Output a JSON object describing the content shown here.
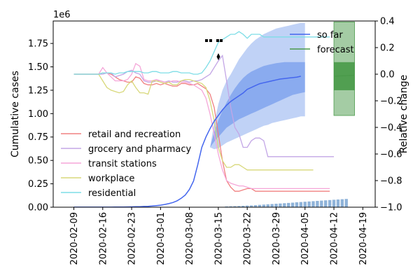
{
  "chart_data": {
    "type": "line",
    "offset_text": "1e6",
    "left_axis": {
      "label": "Cumulative cases",
      "ylim": [
        0,
        1.99
      ],
      "ticks": [
        0.0,
        0.25,
        0.5,
        0.75,
        1.0,
        1.25,
        1.5,
        1.75
      ],
      "tick_labels": [
        "0.00",
        "0.25",
        "0.50",
        "0.75",
        "1.00",
        "1.25",
        "1.50",
        "1.75"
      ]
    },
    "right_axis": {
      "label": "Relative change",
      "ylim": [
        -1.0,
        0.4
      ],
      "ticks": [
        0.4,
        0.2,
        0.0,
        -0.2,
        -0.4,
        -0.6,
        -0.8,
        -1.0
      ],
      "tick_labels": [
        "0.4",
        "0.2",
        "0.0",
        "−0.2",
        "−0.4",
        "−0.6",
        "−0.8",
        "−1.0"
      ]
    },
    "x_axis": {
      "type": "date",
      "range": [
        "2020-02-04",
        "2020-04-22"
      ],
      "tick_labels": [
        "2020-02-09",
        "2020-02-16",
        "2020-02-23",
        "2020-03-01",
        "2020-03-08",
        "2020-03-15",
        "2020-03-22",
        "2020-03-29",
        "2020-04-05",
        "2020-04-12",
        "2020-04-19"
      ]
    },
    "legend_left": {
      "placement": "center-left",
      "entries": [
        {
          "name": "retail and recreation",
          "color": "#f08080"
        },
        {
          "name": "grocery and pharmacy",
          "color": "#c3a6e6"
        },
        {
          "name": "transit stations",
          "color": "#f5a6d8"
        },
        {
          "name": "workplace",
          "color": "#d8d87a"
        },
        {
          "name": "residential",
          "color": "#7ddde6"
        }
      ]
    },
    "legend_right": {
      "placement": "upper-right",
      "entries": [
        {
          "name": "so far",
          "color": "#4466ee"
        },
        {
          "name": "forecast",
          "color": "#4a9a4a"
        }
      ]
    },
    "cases_so_far": {
      "start": "2020-02-09",
      "values": [
        0.001,
        0.001,
        0.001,
        0.001,
        0.001,
        0.001,
        0.001,
        0.001,
        0.001,
        0.001,
        0.002,
        0.002,
        0.002,
        0.003,
        0.004,
        0.005,
        0.006,
        0.008,
        0.01,
        0.013,
        0.017,
        0.022,
        0.029,
        0.038,
        0.05,
        0.068,
        0.095,
        0.13,
        0.19,
        0.28,
        0.45,
        0.64,
        0.75,
        0.84,
        0.92,
        0.98,
        1.04,
        1.09,
        1.13,
        1.16,
        1.19,
        1.22,
        1.26,
        1.28,
        1.3,
        1.32,
        1.33,
        1.34,
        1.35,
        1.36,
        1.37,
        1.375,
        1.38,
        1.385,
        1.39,
        1.4
      ],
      "band_inner": {
        "start": "2020-03-13",
        "upper": [
          0.64,
          0.8,
          0.93,
          1.03,
          1.12,
          1.2,
          1.27,
          1.33,
          1.38,
          1.42,
          1.45,
          1.47,
          1.49,
          1.51,
          1.52,
          1.53,
          1.54,
          1.545,
          1.55,
          1.55,
          1.55,
          1.55,
          1.55,
          1.55
        ],
        "lower": [
          0.64,
          0.7,
          0.75,
          0.8,
          0.85,
          0.88,
          0.91,
          0.94,
          0.96,
          0.98,
          1.0,
          1.02,
          1.04,
          1.06,
          1.08,
          1.1,
          1.12,
          1.14,
          1.16,
          1.18,
          1.2,
          1.21,
          1.22,
          1.23
        ]
      },
      "band_outer": {
        "start": "2020-03-13",
        "upper": [
          0.64,
          0.9,
          1.1,
          1.25,
          1.35,
          1.42,
          1.5,
          1.58,
          1.64,
          1.7,
          1.75,
          1.79,
          1.82,
          1.85,
          1.87,
          1.89,
          1.91,
          1.92,
          1.93,
          1.94,
          1.95,
          1.96,
          1.97,
          1.97
        ],
        "lower": [
          0.64,
          0.62,
          0.63,
          0.66,
          0.69,
          0.71,
          0.73,
          0.75,
          0.77,
          0.79,
          0.81,
          0.83,
          0.85,
          0.87,
          0.88,
          0.9,
          0.91,
          0.92,
          0.93,
          0.94,
          0.95,
          0.96,
          0.97,
          0.97
        ]
      }
    },
    "forecast": {
      "x": [
        "2020-04-12",
        "2020-04-17"
      ],
      "values": [
        1.4,
        1.41
      ],
      "inner_band": [
        1.25,
        1.55
      ],
      "outer_band": [
        0.98,
        1.98
      ]
    },
    "daily_bars": {
      "start": "2020-03-17",
      "values": [
        0.008,
        0.01,
        0.011,
        0.013,
        0.015,
        0.017,
        0.019,
        0.022,
        0.025,
        0.028,
        0.031,
        0.034,
        0.037,
        0.04,
        0.043,
        0.046,
        0.049,
        0.052,
        0.055,
        0.058,
        0.061,
        0.064,
        0.067,
        0.07,
        0.073,
        0.076,
        0.079,
        0.082,
        0.085,
        0.088
      ]
    },
    "mobility": {
      "start": "2020-02-09",
      "series": [
        {
          "name": "retail and recreation",
          "values": [
            0,
            0,
            0,
            0,
            0,
            0,
            0,
            0.01,
            0.01,
            0,
            -0.02,
            -0.04,
            -0.05,
            -0.06,
            -0.06,
            -0.02,
            -0.03,
            -0.07,
            -0.08,
            -0.08,
            -0.07,
            -0.08,
            -0.07,
            -0.08,
            -0.09,
            -0.09,
            -0.07,
            -0.07,
            -0.08,
            -0.08,
            -0.07,
            -0.09,
            -0.11,
            -0.15,
            -0.25,
            -0.45,
            -0.65,
            -0.8,
            -0.85,
            -0.88,
            -0.88,
            -0.87,
            -0.86,
            -0.86,
            -0.88,
            -0.88,
            -0.88,
            -0.88,
            -0.88,
            -0.88,
            -0.88,
            -0.88,
            -0.88,
            -0.88,
            -0.88,
            -0.88,
            -0.88,
            -0.88,
            -0.88,
            -0.88,
            -0.88,
            -0.88,
            -0.88
          ]
        },
        {
          "name": "grocery and pharmacy",
          "values": [
            0,
            0,
            0,
            0,
            0,
            0,
            0,
            0,
            0.01,
            0.01,
            -0.02,
            -0.01,
            0,
            0.02,
            0.03,
            0.01,
            0,
            -0.05,
            -0.06,
            -0.06,
            -0.05,
            -0.05,
            -0.06,
            -0.05,
            -0.06,
            -0.06,
            -0.05,
            -0.05,
            -0.06,
            -0.05,
            -0.05,
            -0.04,
            -0.02,
            0.0,
            0.05,
            0.1,
            0.14,
            -0.05,
            -0.25,
            -0.4,
            -0.45,
            -0.55,
            -0.55,
            -0.5,
            -0.48,
            -0.48,
            -0.5,
            -0.62,
            -0.62,
            -0.62,
            -0.62,
            -0.62,
            -0.62,
            -0.62,
            -0.62,
            -0.62,
            -0.62,
            -0.62,
            -0.62,
            -0.62,
            -0.62,
            -0.62,
            -0.62,
            -0.62
          ]
        },
        {
          "name": "transit stations",
          "values": [
            0,
            0,
            0,
            0,
            0,
            0,
            0,
            0.05,
            0.01,
            -0.02,
            -0.05,
            -0.05,
            -0.05,
            -0.04,
            0.0,
            0.08,
            0.06,
            -0.04,
            -0.05,
            -0.05,
            -0.04,
            -0.05,
            -0.06,
            -0.06,
            -0.05,
            -0.05,
            -0.06,
            -0.06,
            -0.07,
            -0.08,
            -0.1,
            -0.12,
            -0.18,
            -0.3,
            -0.45,
            -0.6,
            -0.72,
            -0.8,
            -0.82,
            -0.83,
            -0.84,
            -0.84,
            -0.85,
            -0.86,
            -0.86,
            -0.86,
            -0.86,
            -0.86,
            -0.86,
            -0.86,
            -0.86,
            -0.86,
            -0.86,
            -0.86,
            -0.86,
            -0.86,
            -0.86,
            -0.86,
            -0.86,
            -0.86,
            -0.86,
            -0.86,
            -0.86
          ]
        },
        {
          "name": "workplace",
          "values": [
            0,
            0,
            0,
            0,
            0,
            0,
            0,
            -0.05,
            -0.1,
            -0.12,
            -0.13,
            -0.14,
            -0.13,
            -0.08,
            -0.05,
            -0.1,
            -0.14,
            -0.14,
            -0.15,
            -0.05,
            -0.05,
            -0.06,
            -0.07,
            -0.06,
            -0.08,
            -0.08,
            -0.05,
            -0.04,
            -0.04,
            -0.05,
            -0.06,
            -0.07,
            -0.1,
            -0.2,
            -0.35,
            -0.55,
            -0.65,
            -0.7,
            -0.7,
            -0.68,
            -0.68,
            -0.7,
            -0.72,
            -0.72,
            -0.72,
            -0.72,
            -0.72,
            -0.72,
            -0.72,
            -0.72,
            -0.72,
            -0.72,
            -0.72,
            -0.72,
            -0.72,
            -0.72,
            -0.72,
            -0.72,
            -0.72
          ]
        },
        {
          "name": "residential",
          "values": [
            0,
            0,
            0,
            0,
            0,
            0,
            0,
            0.01,
            0.01,
            0.01,
            0,
            0.01,
            0.01,
            0.02,
            0.02,
            0.02,
            0.02,
            0.01,
            0.01,
            0.02,
            0.02,
            0.01,
            0.01,
            0.01,
            0.02,
            0.02,
            0.01,
            0.01,
            0.01,
            0.0,
            0.0,
            0.01,
            0.05,
            0.1,
            0.17,
            0.24,
            0.26,
            0.28,
            0.3,
            0.3,
            0.32,
            0.3,
            0.27,
            0.3,
            0.3,
            0.3,
            0.28,
            0.28,
            0.28,
            0.28,
            0.28,
            0.28,
            0.28,
            0.28,
            0.28,
            0.28,
            0.28,
            0.28,
            0.28,
            0.28,
            0.28,
            0.28,
            0.28
          ]
        }
      ]
    }
  }
}
